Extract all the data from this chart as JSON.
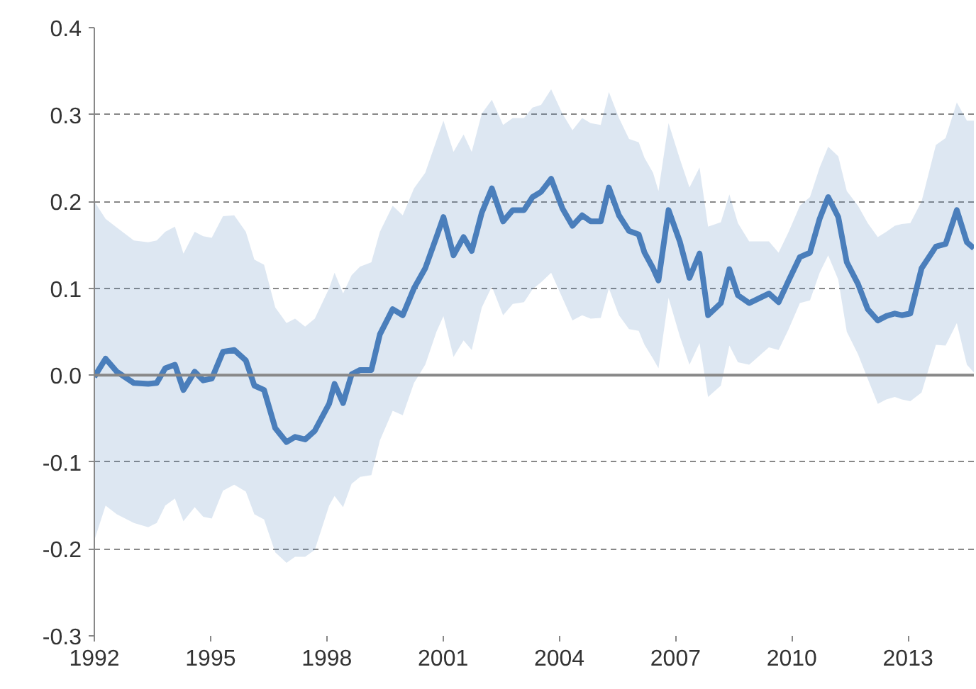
{
  "chart_data": {
    "type": "line",
    "x": [
      1992.0,
      1992.29,
      1992.58,
      1993.02,
      1993.39,
      1993.61,
      1993.83,
      1994.08,
      1994.3,
      1994.59,
      1994.81,
      1995.03,
      1995.32,
      1995.61,
      1995.91,
      1996.13,
      1996.38,
      1996.67,
      1996.96,
      1997.18,
      1997.44,
      1997.69,
      1998.06,
      1998.2,
      1998.42,
      1998.64,
      1998.86,
      1999.15,
      1999.37,
      1999.7,
      1999.96,
      2000.25,
      2000.54,
      2000.83,
      2001.01,
      2001.27,
      2001.53,
      2001.74,
      2002.0,
      2002.26,
      2002.55,
      2002.8,
      2003.09,
      2003.31,
      2003.53,
      2003.79,
      2004.08,
      2004.34,
      2004.59,
      2004.81,
      2005.07,
      2005.28,
      2005.54,
      2005.8,
      2006.05,
      2006.2,
      2006.42,
      2006.56,
      2006.82,
      2007.11,
      2007.36,
      2007.62,
      2007.84,
      2008.17,
      2008.39,
      2008.61,
      2008.9,
      2009.41,
      2009.66,
      2009.92,
      2010.21,
      2010.47,
      2010.72,
      2010.94,
      2011.2,
      2011.42,
      2011.71,
      2011.96,
      2012.22,
      2012.44,
      2012.66,
      2012.84,
      2013.06,
      2013.35,
      2013.72,
      2013.97,
      2014.26,
      2014.52,
      2014.7
    ],
    "series": [
      {
        "color": "#4a7ebb",
        "values": [
          -0.002,
          0.019,
          0.004,
          -0.009,
          -0.01,
          -0.009,
          0.008,
          0.012,
          -0.017,
          0.004,
          -0.006,
          -0.004,
          0.027,
          0.029,
          0.017,
          -0.012,
          -0.017,
          -0.061,
          -0.077,
          -0.071,
          -0.074,
          -0.064,
          -0.033,
          -0.01,
          -0.032,
          0.001,
          0.006,
          0.006,
          0.047,
          0.076,
          0.069,
          0.1,
          0.123,
          0.159,
          0.182,
          0.138,
          0.159,
          0.143,
          0.187,
          0.215,
          0.177,
          0.19,
          0.19,
          0.205,
          0.211,
          0.226,
          0.192,
          0.172,
          0.184,
          0.177,
          0.177,
          0.216,
          0.184,
          0.166,
          0.162,
          0.141,
          0.123,
          0.109,
          0.19,
          0.154,
          0.112,
          0.14,
          0.069,
          0.083,
          0.122,
          0.092,
          0.083,
          0.094,
          0.084,
          0.109,
          0.136,
          0.141,
          0.18,
          0.205,
          0.182,
          0.13,
          0.105,
          0.076,
          0.063,
          0.068,
          0.071,
          0.069,
          0.071,
          0.123,
          0.148,
          0.151,
          0.19,
          0.153,
          0.146
        ],
        "upper": [
          0.2,
          0.18,
          0.17,
          0.155,
          0.153,
          0.155,
          0.165,
          0.171,
          0.14,
          0.165,
          0.16,
          0.158,
          0.183,
          0.184,
          0.165,
          0.133,
          0.127,
          0.078,
          0.06,
          0.065,
          0.056,
          0.065,
          0.1,
          0.118,
          0.094,
          0.115,
          0.125,
          0.13,
          0.165,
          0.195,
          0.184,
          0.215,
          0.233,
          0.27,
          0.293,
          0.257,
          0.277,
          0.257,
          0.301,
          0.317,
          0.288,
          0.296,
          0.296,
          0.308,
          0.311,
          0.329,
          0.301,
          0.282,
          0.296,
          0.29,
          0.288,
          0.326,
          0.296,
          0.272,
          0.268,
          0.25,
          0.233,
          0.212,
          0.29,
          0.249,
          0.216,
          0.239,
          0.171,
          0.176,
          0.208,
          0.175,
          0.154,
          0.154,
          0.141,
          0.165,
          0.195,
          0.205,
          0.239,
          0.263,
          0.252,
          0.212,
          0.195,
          0.175,
          0.159,
          0.165,
          0.172,
          0.174,
          0.175,
          0.2,
          0.265,
          0.273,
          0.314,
          0.293,
          0.293
        ],
        "lower": [
          -0.19,
          -0.15,
          -0.16,
          -0.17,
          -0.175,
          -0.17,
          -0.15,
          -0.142,
          -0.168,
          -0.152,
          -0.163,
          -0.165,
          -0.133,
          -0.126,
          -0.134,
          -0.16,
          -0.166,
          -0.204,
          -0.216,
          -0.209,
          -0.209,
          -0.201,
          -0.15,
          -0.139,
          -0.152,
          -0.125,
          -0.117,
          -0.115,
          -0.075,
          -0.041,
          -0.046,
          -0.009,
          0.012,
          0.05,
          0.068,
          0.021,
          0.04,
          0.029,
          0.078,
          0.102,
          0.069,
          0.082,
          0.084,
          0.099,
          0.107,
          0.118,
          0.089,
          0.063,
          0.069,
          0.065,
          0.066,
          0.1,
          0.069,
          0.053,
          0.051,
          0.035,
          0.019,
          0.008,
          0.089,
          0.045,
          0.012,
          0.037,
          -0.025,
          -0.012,
          0.034,
          0.015,
          0.012,
          0.032,
          0.029,
          0.053,
          0.083,
          0.086,
          0.118,
          0.138,
          0.11,
          0.05,
          0.024,
          -0.004,
          -0.033,
          -0.028,
          -0.025,
          -0.028,
          -0.03,
          -0.02,
          0.035,
          0.034,
          0.06,
          0.012,
          0.003
        ]
      }
    ],
    "xlim": [
      1992,
      2014.7
    ],
    "xticks": [
      1992,
      1995,
      1998,
      2001,
      2004,
      2007,
      2010,
      2013
    ],
    "ylim": [
      -0.3,
      0.4
    ],
    "yticks": [
      {
        "value": -0.3,
        "label": "-0.3"
      },
      {
        "value": -0.2,
        "label": "-0.2"
      },
      {
        "value": -0.1,
        "label": "-0.1"
      },
      {
        "value": 0,
        "label": "0.0"
      },
      {
        "value": 0.1,
        "label": "0.1"
      },
      {
        "value": 0.2,
        "label": "0.2"
      },
      {
        "value": 0.3,
        "label": "0.3"
      },
      {
        "value": 0.4,
        "label": "0.4"
      }
    ],
    "grid": "y",
    "ref_lines": [
      {
        "axis": "y",
        "value": 0,
        "color": "#888888",
        "line_style": "solid"
      }
    ]
  }
}
